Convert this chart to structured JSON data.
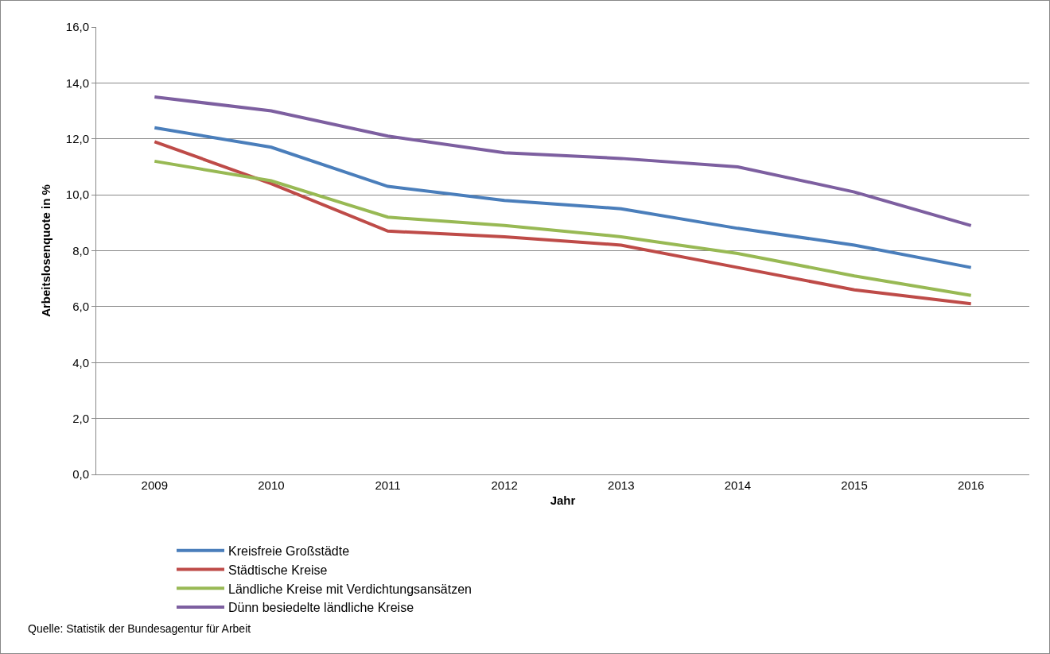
{
  "chart_data": {
    "type": "line",
    "xlabel": "Jahr",
    "ylabel": "Arbeitslosenquote in %",
    "categories": [
      "2009",
      "2010",
      "2011",
      "2012",
      "2013",
      "2014",
      "2015",
      "2016"
    ],
    "series": [
      {
        "name": "Kreisfreie Großstädte",
        "color": "#4a7ebb",
        "values": [
          12.4,
          11.7,
          10.3,
          9.8,
          9.5,
          8.8,
          8.2,
          7.4
        ]
      },
      {
        "name": "Städtische Kreise",
        "color": "#be4b48",
        "values": [
          11.9,
          10.4,
          8.7,
          8.5,
          8.2,
          7.4,
          6.6,
          6.1
        ]
      },
      {
        "name": "Ländliche Kreise mit Verdichtungsansätzen",
        "color": "#98b954",
        "values": [
          11.2,
          10.5,
          9.2,
          8.9,
          8.5,
          7.9,
          7.1,
          6.4
        ]
      },
      {
        "name": "Dünn besiedelte ländliche Kreise",
        "color": "#7d5fa0",
        "values": [
          13.5,
          13.0,
          12.1,
          11.5,
          11.3,
          11.0,
          10.1,
          8.9
        ]
      }
    ],
    "ylim": [
      0,
      16
    ],
    "yticks": [
      {
        "value": 0,
        "label": "0,0"
      },
      {
        "value": 2,
        "label": "2,0"
      },
      {
        "value": 4,
        "label": "4,0"
      },
      {
        "value": 6,
        "label": "6,0"
      },
      {
        "value": 8,
        "label": "8,0"
      },
      {
        "value": 10,
        "label": "10,0"
      },
      {
        "value": 12,
        "label": "12,0"
      },
      {
        "value": 14,
        "label": "14,0"
      },
      {
        "value": 16,
        "label": "16,0"
      }
    ],
    "grid": "y",
    "legend": "bottom",
    "marker": "none",
    "line_style": "solid",
    "annotations": [
      "Quelle: Statistik der Bundesagentur für Arbeit"
    ]
  }
}
